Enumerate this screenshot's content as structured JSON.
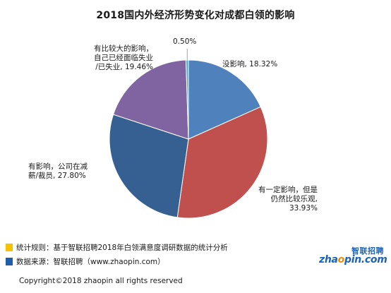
{
  "chart_data": {
    "type": "pie",
    "title": "2018国内外经济形势变化对成都白领的影响",
    "slices": [
      {
        "label_lines": [
          "没影响, 18.32%"
        ],
        "value": 18.32,
        "color": "#4f81bd"
      },
      {
        "label_lines": [
          "有一定影响，但是",
          "仍然比较乐观,",
          "33.93%"
        ],
        "value": 33.93,
        "color": "#c0504d"
      },
      {
        "label_lines": [
          "有影响，公司在减",
          "薪/裁员, 27.80%"
        ],
        "value": 27.8,
        "color": "#366092"
      },
      {
        "label_lines": [
          "有比较大的影响，",
          "自己已经面临失业",
          "/已失业, 19.46%"
        ],
        "value": 19.46,
        "color": "#8064a2"
      },
      {
        "label_lines": [
          "0.50%"
        ],
        "value": 0.5,
        "color": "#4bacc6"
      }
    ]
  },
  "footer": {
    "rule": {
      "text": "统计规则：基于智联招聘2018年白领满意度调研数据的统计分析",
      "color": "#f5c100"
    },
    "source": {
      "text": "数据来源：智联招聘（www.zhaopin.com）",
      "color": "#1f5fa8"
    },
    "copyright": "Copyright©2018 zhaopin all rights reserved"
  },
  "logo": {
    "cn": "智联招聘",
    "en": "zhaopin.com",
    "cn_color": "#1a63b8",
    "en_color": "#1a63b8",
    "dot_color": "#f08a00"
  }
}
